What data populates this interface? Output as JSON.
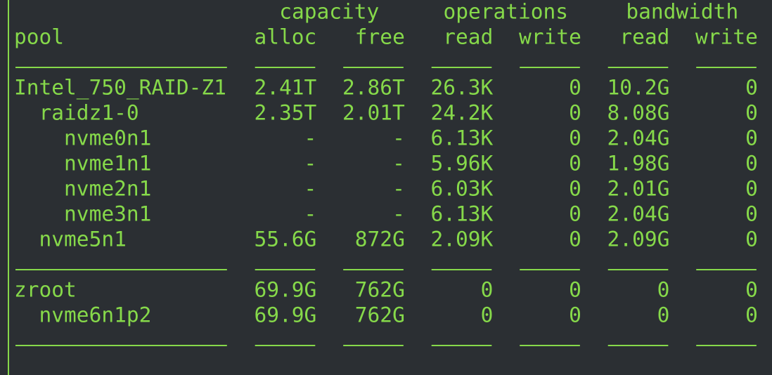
{
  "header": {
    "groups": [
      "capacity",
      "operations",
      "bandwidth"
    ],
    "columns": [
      "pool",
      "alloc",
      "free",
      "read",
      "write",
      "read",
      "write"
    ]
  },
  "sections": [
    [
      [
        "Intel_750_RAID-Z1",
        "2.41T",
        "2.86T",
        "26.3K",
        "0",
        "10.2G",
        "0"
      ],
      [
        "  raidz1-0",
        "2.35T",
        "2.01T",
        "24.2K",
        "0",
        "8.08G",
        "0"
      ],
      [
        "    nvme0n1",
        "-",
        "-",
        "6.13K",
        "0",
        "2.04G",
        "0"
      ],
      [
        "    nvme1n1",
        "-",
        "-",
        "5.96K",
        "0",
        "1.98G",
        "0"
      ],
      [
        "    nvme2n1",
        "-",
        "-",
        "6.03K",
        "0",
        "2.01G",
        "0"
      ],
      [
        "    nvme3n1",
        "-",
        "-",
        "6.13K",
        "0",
        "2.04G",
        "0"
      ],
      [
        "  nvme5n1",
        "55.6G",
        "872G",
        "2.09K",
        "0",
        "2.09G",
        "0"
      ]
    ],
    [
      [
        "zroot",
        "69.9G",
        "762G",
        "0",
        "0",
        "0",
        "0"
      ],
      [
        "  nvme6n1p2",
        "69.9G",
        "762G",
        "0",
        "0",
        "0",
        "0"
      ]
    ]
  ]
}
